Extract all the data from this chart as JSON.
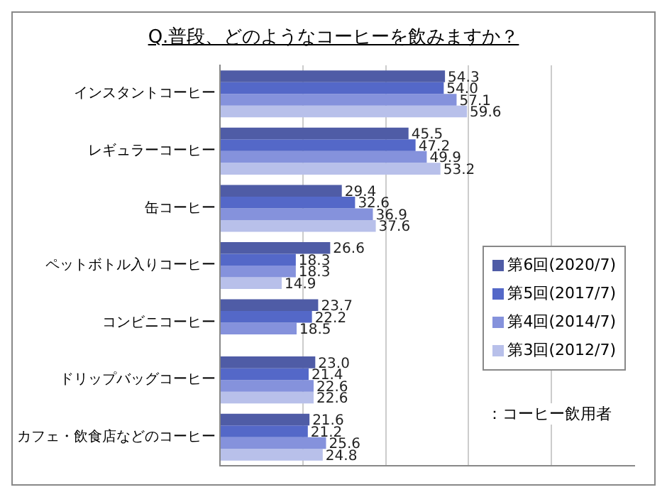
{
  "chart_data": {
    "type": "bar",
    "orientation": "horizontal",
    "title": "Q.普段、どのようなコーヒーを飲みますか？",
    "categories": [
      "インスタントコーヒー",
      "レギュラーコーヒー",
      "缶コーヒー",
      "ペットボトル入りコーヒー",
      "コンビニコーヒー",
      "ドリップバッグコーヒー",
      "カフェ・飲食店などのコーヒー"
    ],
    "series": [
      {
        "name": "第6回(2020/7)",
        "color": "#4f5ca6",
        "values": [
          54.3,
          45.5,
          29.4,
          26.6,
          23.7,
          23.0,
          21.6
        ],
        "value_labels": [
          "54.3",
          "45.5",
          "29.4",
          "26.6",
          "23.7",
          "23.0",
          "21.6"
        ]
      },
      {
        "name": "第5回(2017/7)",
        "color": "#5468c8",
        "values": [
          54.0,
          47.2,
          32.6,
          18.3,
          22.2,
          21.4,
          21.2
        ],
        "value_labels": [
          "54.0",
          "47.2",
          "32.6",
          "18.3",
          "22.2",
          "21.4",
          "21.2"
        ]
      },
      {
        "name": "第4回(2014/7)",
        "color": "#8592dc",
        "values": [
          57.1,
          49.9,
          36.9,
          18.3,
          18.5,
          22.6,
          25.6
        ],
        "value_labels": [
          "57.1",
          "49.9",
          "36.9",
          "18.3",
          "18.5",
          "22.6",
          "25.6"
        ]
      },
      {
        "name": "第3回(2012/7)",
        "color": "#b8c0ea",
        "values": [
          59.6,
          53.2,
          37.6,
          14.9,
          null,
          22.6,
          24.8
        ],
        "value_labels": [
          "59.6",
          "53.2",
          "37.6",
          "14.9",
          null,
          "22.6",
          "24.8"
        ]
      }
    ],
    "xlim": [
      0,
      100
    ],
    "xticks": [
      {
        "value": 0,
        "label": null
      },
      {
        "value": 20,
        "label": null
      },
      {
        "value": 40,
        "label": null
      },
      {
        "value": 60,
        "label": null
      },
      {
        "value": 80,
        "label": null
      }
    ],
    "tick_labels": "y",
    "grid": "x",
    "legend": "bottom right",
    "annotations": [
      "：コーヒー飲用者"
    ]
  }
}
